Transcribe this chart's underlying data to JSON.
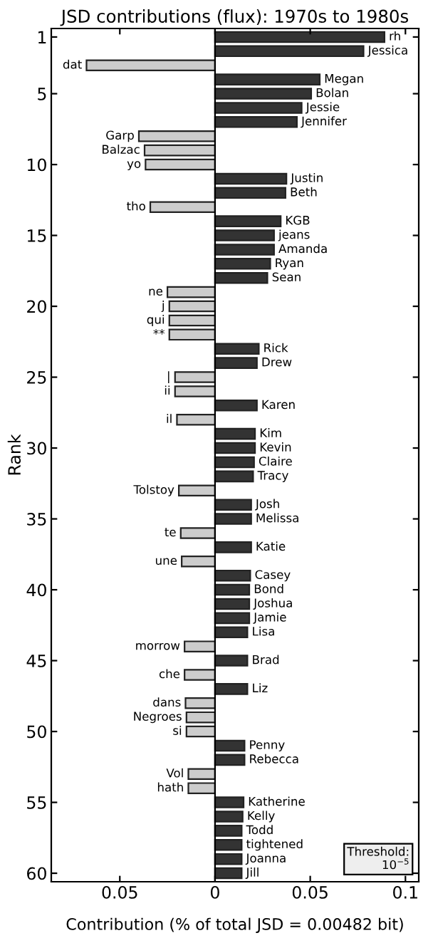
{
  "chart_data": {
    "type": "bar",
    "orientation": "horizontal",
    "title": "JSD contributions (flux): 1970s to 1980s",
    "xlabel": "Contribution (% of total JSD = 0.00482 bit)",
    "ylabel": "Rank",
    "x": [
      1,
      2,
      3,
      4,
      5,
      6,
      7,
      8,
      9,
      10,
      11,
      12,
      13,
      14,
      15,
      16,
      17,
      18,
      19,
      20,
      21,
      22,
      23,
      24,
      25,
      26,
      27,
      28,
      29,
      30,
      31,
      32,
      33,
      34,
      35,
      36,
      37,
      38,
      39,
      40,
      41,
      42,
      43,
      44,
      45,
      46,
      47,
      48,
      49,
      50,
      51,
      52,
      53,
      54,
      55,
      56,
      57,
      58,
      59,
      60
    ],
    "series": [
      {
        "color": "#333333",
        "values": [
          0.089,
          0.078,
          null,
          0.055,
          0.0505,
          0.0455,
          0.043,
          null,
          null,
          null,
          0.0375,
          0.037,
          null,
          0.0345,
          0.031,
          0.031,
          0.029,
          0.0275,
          null,
          null,
          null,
          null,
          0.023,
          0.022,
          null,
          null,
          0.022,
          null,
          0.021,
          0.021,
          0.0205,
          0.02,
          null,
          0.019,
          0.019,
          null,
          0.019,
          null,
          0.0185,
          0.018,
          0.018,
          0.018,
          0.017,
          null,
          0.017,
          null,
          0.017,
          null,
          null,
          null,
          0.0155,
          0.0155,
          null,
          null,
          0.015,
          0.0145,
          0.014,
          0.014,
          0.014,
          0.014
        ]
      },
      {
        "color": "#cccccc",
        "values": [
          null,
          null,
          -0.0675,
          null,
          null,
          null,
          null,
          -0.04,
          -0.037,
          -0.0365,
          null,
          null,
          -0.034,
          null,
          null,
          null,
          null,
          null,
          -0.025,
          -0.024,
          -0.024,
          -0.024,
          null,
          null,
          -0.021,
          -0.021,
          null,
          -0.02,
          null,
          null,
          null,
          null,
          -0.019,
          null,
          null,
          -0.018,
          null,
          -0.0175,
          null,
          null,
          null,
          null,
          null,
          -0.016,
          null,
          -0.016,
          null,
          -0.0155,
          -0.015,
          -0.015,
          null,
          null,
          -0.014,
          -0.014,
          null,
          null,
          null,
          null,
          null,
          null
        ]
      }
    ],
    "xlim": [
      -0.086,
      0.107
    ],
    "xticks": [
      {
        "value": -0.05,
        "label": "0.05"
      },
      0,
      0.05,
      0.1
    ],
    "ylim": [
      60.6,
      0.4
    ],
    "yticks": [
      1,
      5,
      10,
      15,
      20,
      25,
      30,
      35,
      40,
      45,
      50,
      55,
      60
    ],
    "annotations": [
      "Threshold:\n10$^{−5}$",
      {
        "text": "rh",
        "x": 0.089,
        "y": 1
      },
      {
        "text": "Jessica",
        "x": 0.078,
        "y": 2
      },
      {
        "text": "dat",
        "x": -0.0675,
        "y": 3
      },
      {
        "text": "Megan",
        "x": 0.055,
        "y": 4
      },
      {
        "text": "Bolan",
        "x": 0.0505,
        "y": 5
      },
      {
        "text": "Jessie",
        "x": 0.0455,
        "y": 6
      },
      {
        "text": "Jennifer",
        "x": 0.043,
        "y": 7
      },
      {
        "text": "Garp",
        "x": -0.04,
        "y": 8
      },
      {
        "text": "Balzac",
        "x": -0.037,
        "y": 9
      },
      {
        "text": "yo",
        "x": -0.0365,
        "y": 10
      },
      {
        "text": "Justin",
        "x": 0.0375,
        "y": 11
      },
      {
        "text": "Beth",
        "x": 0.037,
        "y": 12
      },
      {
        "text": "tho",
        "x": -0.034,
        "y": 13
      },
      {
        "text": "KGB",
        "x": 0.0345,
        "y": 14
      },
      {
        "text": "jeans",
        "x": 0.031,
        "y": 15
      },
      {
        "text": "Amanda",
        "x": 0.031,
        "y": 16
      },
      {
        "text": "Ryan",
        "x": 0.029,
        "y": 17
      },
      {
        "text": "Sean",
        "x": 0.0275,
        "y": 18
      },
      {
        "text": "ne",
        "x": -0.025,
        "y": 19
      },
      {
        "text": "j",
        "x": -0.024,
        "y": 20
      },
      {
        "text": "qui",
        "x": -0.024,
        "y": 21
      },
      {
        "text": "**",
        "x": -0.024,
        "y": 22
      },
      {
        "text": "Rick",
        "x": 0.023,
        "y": 23
      },
      {
        "text": "Drew",
        "x": 0.022,
        "y": 24
      },
      {
        "text": "|",
        "x": -0.021,
        "y": 25
      },
      {
        "text": "ii",
        "x": -0.021,
        "y": 26
      },
      {
        "text": "Karen",
        "x": 0.022,
        "y": 27
      },
      {
        "text": "il",
        "x": -0.02,
        "y": 28
      },
      {
        "text": "Kim",
        "x": 0.021,
        "y": 29
      },
      {
        "text": "Kevin",
        "x": 0.021,
        "y": 30
      },
      {
        "text": "Claire",
        "x": 0.0205,
        "y": 31
      },
      {
        "text": "Tracy",
        "x": 0.02,
        "y": 32
      },
      {
        "text": "Tolstoy",
        "x": -0.019,
        "y": 33
      },
      {
        "text": "Josh",
        "x": 0.019,
        "y": 34
      },
      {
        "text": "Melissa",
        "x": 0.019,
        "y": 35
      },
      {
        "text": "te",
        "x": -0.018,
        "y": 36
      },
      {
        "text": "Katie",
        "x": 0.019,
        "y": 37
      },
      {
        "text": "une",
        "x": -0.0175,
        "y": 38
      },
      {
        "text": "Casey",
        "x": 0.0185,
        "y": 39
      },
      {
        "text": "Bond",
        "x": 0.018,
        "y": 40
      },
      {
        "text": "Joshua",
        "x": 0.018,
        "y": 41
      },
      {
        "text": "Jamie",
        "x": 0.018,
        "y": 42
      },
      {
        "text": "Lisa",
        "x": 0.017,
        "y": 43
      },
      {
        "text": "morrow",
        "x": -0.016,
        "y": 44
      },
      {
        "text": "Brad",
        "x": 0.017,
        "y": 45
      },
      {
        "text": "che",
        "x": -0.016,
        "y": 46
      },
      {
        "text": "Liz",
        "x": 0.017,
        "y": 47
      },
      {
        "text": "dans",
        "x": -0.0155,
        "y": 48
      },
      {
        "text": "Negroes",
        "x": -0.015,
        "y": 49
      },
      {
        "text": "si",
        "x": -0.015,
        "y": 50
      },
      {
        "text": "Penny",
        "x": 0.0155,
        "y": 51
      },
      {
        "text": "Rebecca",
        "x": 0.0155,
        "y": 52
      },
      {
        "text": "Vol",
        "x": -0.014,
        "y": 53
      },
      {
        "text": "hath",
        "x": -0.014,
        "y": 54
      },
      {
        "text": "Katherine",
        "x": 0.015,
        "y": 55
      },
      {
        "text": "Kelly",
        "x": 0.0145,
        "y": 56
      },
      {
        "text": "Todd",
        "x": 0.014,
        "y": 57
      },
      {
        "text": "tightened",
        "x": 0.014,
        "y": 58
      },
      {
        "text": "Joanna",
        "x": 0.014,
        "y": 59
      },
      {
        "text": "Jill",
        "x": 0.014,
        "y": 60
      }
    ],
    "ref_lines": [
      {
        "axis": "x",
        "value": 0,
        "color": "#000000"
      }
    ],
    "grid": false
  }
}
